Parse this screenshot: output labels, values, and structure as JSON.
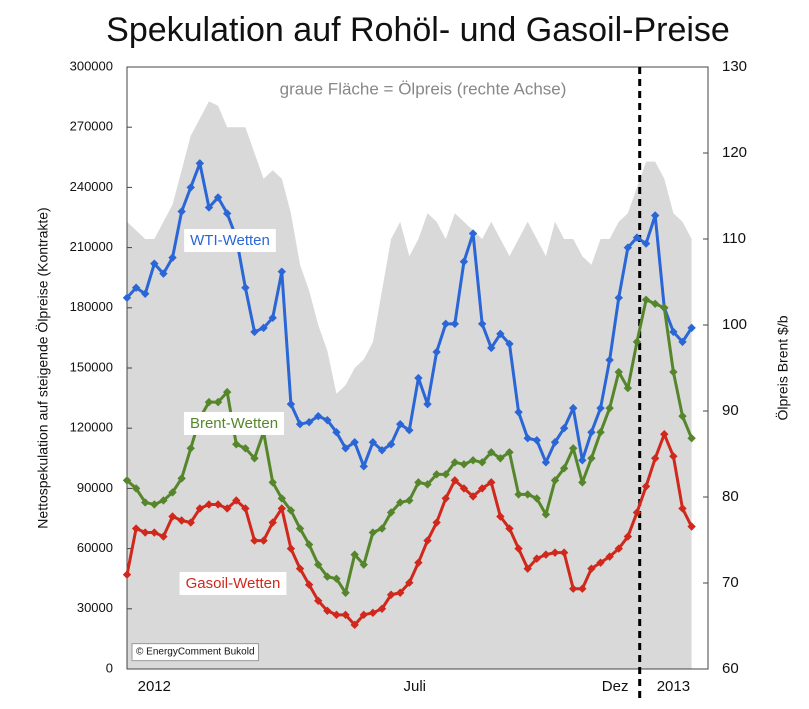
{
  "chart_data": {
    "type": "line",
    "title": "Spekulation auf Rohöl- und Gasoil-Preise",
    "annotation": "graue Fläche = Ölpreis (rechte Achse)",
    "source": "© EnergyComment Bukold",
    "ylabel": "Nettospekulation auf steigende Ölpreise (Kontrakte)",
    "y2label": "Ölpreis Brent $/b",
    "x": [
      0,
      1,
      2,
      3,
      4,
      5,
      6,
      7,
      8,
      9,
      10,
      11,
      12,
      13,
      14,
      15,
      16,
      17,
      18,
      19,
      20,
      21,
      22,
      23,
      24,
      25,
      26,
      27,
      28,
      29,
      30,
      31,
      32,
      33,
      34,
      35,
      36,
      37,
      38,
      39,
      40,
      41,
      42,
      43,
      44,
      45,
      46,
      47,
      48,
      49,
      50,
      51,
      52,
      53,
      54,
      55,
      56,
      57,
      58,
      59,
      60,
      61,
      62
    ],
    "xlim": [
      0,
      63.8
    ],
    "xticks": [
      {
        "value": 3,
        "label": "2012"
      },
      {
        "value": 31.6,
        "label": "Juli"
      },
      {
        "value": 53.6,
        "label": "Dez"
      },
      {
        "value": 60,
        "label": "2013"
      }
    ],
    "vline_x": 56.3,
    "ylim": [
      0,
      300000
    ],
    "yticks": [
      0,
      30000,
      60000,
      90000,
      120000,
      150000,
      180000,
      210000,
      240000,
      270000,
      300000
    ],
    "y2lim": [
      60,
      130
    ],
    "y2ticks": [
      60,
      70,
      80,
      90,
      100,
      110,
      120,
      130
    ],
    "series": [
      {
        "type": "area",
        "axis": "y2",
        "color": "#d9d9d9",
        "values": [
          112,
          111,
          110,
          110,
          112,
          114,
          118,
          122,
          124,
          126,
          125.5,
          123,
          123,
          123,
          120,
          117,
          118,
          117,
          113,
          107,
          104,
          100,
          97,
          92,
          93,
          95,
          96,
          98,
          104,
          110,
          112,
          108,
          110,
          113,
          112,
          110,
          113,
          112,
          111,
          110,
          112,
          110,
          108,
          110,
          112,
          110,
          108,
          112,
          110,
          110,
          108,
          107,
          110,
          110,
          112,
          113,
          116,
          119,
          119,
          117,
          113,
          112,
          110
        ]
      },
      {
        "name": "WTI-Wetten",
        "color": "#2a66d6",
        "values": [
          185000,
          190000,
          187000,
          202000,
          197000,
          205000,
          228000,
          240000,
          252000,
          230000,
          235000,
          227000,
          215000,
          190000,
          168000,
          170000,
          175000,
          198000,
          132000,
          122000,
          123000,
          126000,
          124000,
          118000,
          110000,
          113000,
          101000,
          113000,
          109000,
          112000,
          122000,
          119000,
          145000,
          132000,
          158000,
          172000,
          172000,
          203000,
          217000,
          172000,
          160000,
          167000,
          162000,
          128000,
          115000,
          114000,
          103000,
          113000,
          120000,
          130000,
          104000,
          118000,
          130000,
          154000,
          185000,
          210000,
          215000,
          212000,
          226000,
          180000,
          168000,
          163000,
          170000
        ]
      },
      {
        "name": "Brent-Wetten",
        "color": "#55862b",
        "values": [
          94000,
          90000,
          83000,
          82000,
          84000,
          88000,
          95000,
          110000,
          125000,
          133000,
          133000,
          138000,
          112000,
          110000,
          105000,
          118000,
          93000,
          85000,
          79000,
          70000,
          62000,
          52000,
          46000,
          45000,
          38000,
          57000,
          52000,
          68000,
          70000,
          78000,
          83000,
          84000,
          93000,
          92000,
          97000,
          97000,
          103000,
          102000,
          104000,
          103000,
          108000,
          105000,
          108000,
          87000,
          87000,
          85000,
          77000,
          94000,
          100000,
          110000,
          93000,
          105000,
          118000,
          130000,
          148000,
          140000,
          163000,
          184000,
          182000,
          180000,
          148000,
          126000,
          115000
        ]
      },
      {
        "name": "Gasoil-Wetten",
        "color": "#d0281c",
        "values": [
          47000,
          70000,
          68000,
          68000,
          66000,
          76000,
          74000,
          73000,
          80000,
          82000,
          82000,
          80000,
          84000,
          80000,
          64000,
          64000,
          73000,
          80000,
          60000,
          50000,
          42000,
          34000,
          29000,
          27000,
          27000,
          22000,
          27000,
          28000,
          30000,
          37000,
          38000,
          43000,
          53000,
          64000,
          73000,
          85000,
          94000,
          90000,
          86000,
          90000,
          93000,
          76000,
          70000,
          60000,
          50000,
          55000,
          57000,
          58000,
          58000,
          40000,
          40000,
          50000,
          53000,
          56000,
          60000,
          66000,
          78000,
          91000,
          105000,
          117000,
          106000,
          80000,
          71000
        ]
      }
    ]
  }
}
